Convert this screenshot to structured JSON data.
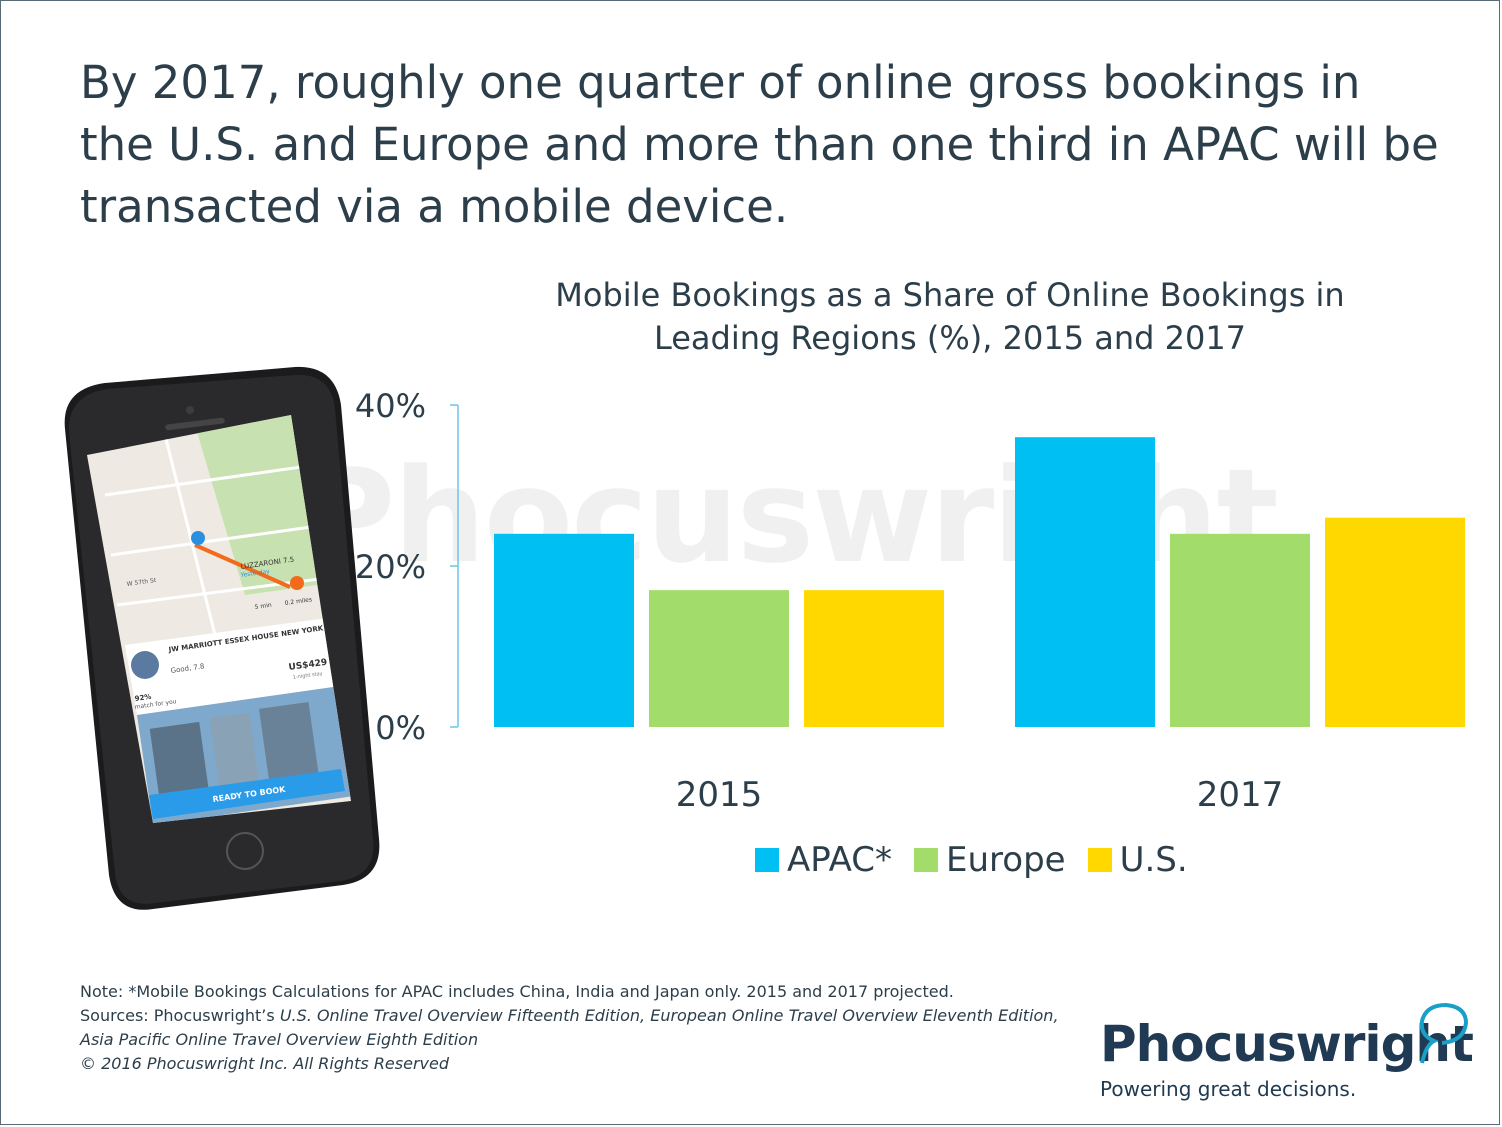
{
  "headline": "By 2017, roughly one quarter of online gross bookings in the U.S. and Europe and more than one third in APAC will be transacted via a mobile device.",
  "chart_data": {
    "type": "bar",
    "title": "Mobile Bookings as a Share of Online Bookings in Leading Regions (%), 2015 and 2017",
    "categories": [
      "2015",
      "2017"
    ],
    "series": [
      {
        "name": "APAC*",
        "values": [
          24,
          36
        ],
        "color": "#00c0f3"
      },
      {
        "name": "Europe",
        "values": [
          17,
          24
        ],
        "color": "#a2dc6a"
      },
      {
        "name": "U.S.",
        "values": [
          17,
          26
        ],
        "color": "#ffd800"
      }
    ],
    "ylim": [
      0,
      40
    ],
    "yticks": [
      "0%",
      "20%",
      "40%"
    ],
    "ytick_values": [
      0,
      20,
      40
    ],
    "legend_position": "bottom",
    "grid": false
  },
  "phone_screen": {
    "street_labels": [
      "W 57th St",
      "W 56th St",
      "Broadway"
    ],
    "map_pin_label": "LUZZARONI 7.5",
    "map_pin_sub": "Yesterday",
    "distance_time": "5 min",
    "distance_miles": "0.2 miles",
    "hotel_name": "JW MARRIOTT ESSEX HOUSE NEW YORK",
    "rating": "Good, 7.8",
    "price": "US$429",
    "price_note": "1-night stay",
    "match_percent": "92%",
    "match_label": "match for you",
    "cta": "READY TO BOOK"
  },
  "watermark": "Phocuswright",
  "footnote": {
    "note": "Note: *Mobile Bookings Calculations for APAC includes China, India and Japan only. 2015 and 2017 projected.",
    "sources_prefix": "Sources: Phocuswright’s ",
    "sources_titles": "U.S. Online Travel Overview Fifteenth Edition, European Online Travel Overview Eleventh Edition, Asia Pacific Online Travel Overview Eighth Edition",
    "copyright": "© 2016 Phocuswright Inc. All Rights Reserved"
  },
  "logo": {
    "name": "Phocuswright",
    "tagline": "Powering great decisions."
  },
  "colors": {
    "text": "#2c3e4a",
    "axis": "#6ec6ea",
    "brand": "#1f3a52",
    "logo_accent": "#1aa0c8"
  }
}
